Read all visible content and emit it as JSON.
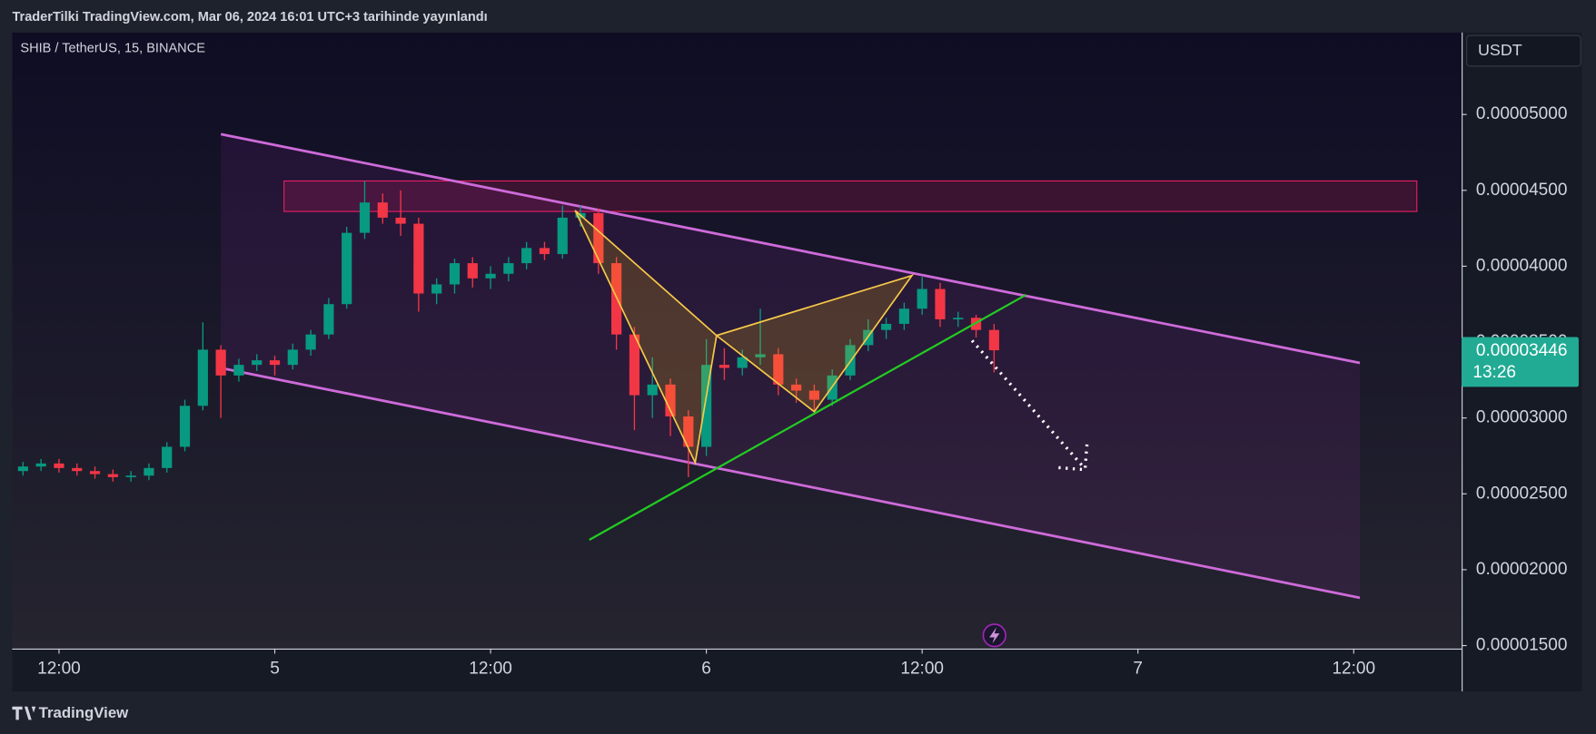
{
  "header": "TraderTilki TradingView.com, Mar 06, 2024 16:01 UTC+3 tarihinde yayınlandı",
  "chart_data": {
    "type": "candlestick",
    "title": "SHIB / TetherUS, 15, BINANCE",
    "currency": "USDT",
    "x": [
      -14,
      -13,
      -12,
      -11,
      -10,
      -9,
      -8,
      -7,
      -6,
      -5,
      -4,
      -3,
      -2,
      -1,
      0,
      1,
      2,
      3,
      4,
      5,
      6,
      7,
      8,
      9,
      10,
      11,
      12,
      13,
      14,
      15,
      16,
      17,
      18,
      19,
      20,
      21,
      22,
      23,
      24,
      25,
      26,
      27,
      28,
      29,
      30,
      31,
      32,
      33,
      34,
      35,
      36,
      37,
      38,
      39,
      40
    ],
    "open": [
      2.65e-05,
      2.68e-05,
      2.7e-05,
      2.67e-05,
      2.65e-05,
      2.63e-05,
      2.61e-05,
      2.62e-05,
      2.67e-05,
      2.81e-05,
      3.08e-05,
      3.45e-05,
      3.28e-05,
      3.35e-05,
      3.38e-05,
      3.35e-05,
      3.45e-05,
      3.55e-05,
      3.75e-05,
      4.22e-05,
      4.42e-05,
      4.32e-05,
      4.28e-05,
      3.82e-05,
      3.88e-05,
      4.02e-05,
      3.92e-05,
      3.95e-05,
      4.02e-05,
      4.12e-05,
      4.08e-05,
      4.32e-05,
      4.35e-05,
      4.02e-05,
      3.55e-05,
      3.15e-05,
      3.22e-05,
      3.01e-05,
      2.81e-05,
      3.35e-05,
      3.33e-05,
      3.4e-05,
      3.42e-05,
      3.22e-05,
      3.18e-05,
      3.12e-05,
      3.28e-05,
      3.48e-05,
      3.58e-05,
      3.62e-05,
      3.72e-05,
      3.85e-05,
      3.65e-05,
      3.66e-05,
      3.58e-05
    ],
    "high": [
      2.71e-05,
      2.73e-05,
      2.73e-05,
      2.7e-05,
      2.68e-05,
      2.66e-05,
      2.65e-05,
      2.7e-05,
      2.84e-05,
      3.12e-05,
      3.63e-05,
      3.48e-05,
      3.39e-05,
      3.42e-05,
      3.41e-05,
      3.49e-05,
      3.58e-05,
      3.79e-05,
      4.26e-05,
      4.56e-05,
      4.48e-05,
      4.5e-05,
      4.32e-05,
      3.92e-05,
      4.05e-05,
      4.06e-05,
      4e-05,
      4.06e-05,
      4.16e-05,
      4.16e-05,
      4.4e-05,
      4.4e-05,
      4.38e-05,
      4.06e-05,
      3.6e-05,
      3.4e-05,
      3.26e-05,
      3.05e-05,
      3.52e-05,
      3.46e-05,
      3.45e-05,
      3.72e-05,
      3.46e-05,
      3.26e-05,
      3.22e-05,
      3.32e-05,
      3.52e-05,
      3.65e-05,
      3.66e-05,
      3.76e-05,
      3.93e-05,
      3.89e-05,
      3.7e-05,
      3.68e-05,
      3.62e-05
    ],
    "low": [
      2.62e-05,
      2.65e-05,
      2.64e-05,
      2.62e-05,
      2.6e-05,
      2.58e-05,
      2.58e-05,
      2.59e-05,
      2.64e-05,
      2.78e-05,
      3.05e-05,
      3e-05,
      3.24e-05,
      3.31e-05,
      3.28e-05,
      3.32e-05,
      3.41e-05,
      3.52e-05,
      3.72e-05,
      4.18e-05,
      4.28e-05,
      4.2e-05,
      3.7e-05,
      3.75e-05,
      3.82e-05,
      3.86e-05,
      3.85e-05,
      3.9e-05,
      3.98e-05,
      4.04e-05,
      4.05e-05,
      4.26e-05,
      3.95e-05,
      3.45e-05,
      2.92e-05,
      3e-05,
      2.88e-05,
      2.61e-05,
      2.75e-05,
      3.25e-05,
      3.28e-05,
      3.35e-05,
      3.15e-05,
      3.1e-05,
      3.05e-05,
      3.08e-05,
      3.25e-05,
      3.44e-05,
      3.52e-05,
      3.58e-05,
      3.68e-05,
      3.6e-05,
      3.6e-05,
      3.53e-05,
      3.3e-05
    ],
    "close": [
      2.68e-05,
      2.7e-05,
      2.67e-05,
      2.65e-05,
      2.63e-05,
      2.61e-05,
      2.62e-05,
      2.67e-05,
      2.81e-05,
      3.08e-05,
      3.45e-05,
      3.28e-05,
      3.35e-05,
      3.38e-05,
      3.35e-05,
      3.45e-05,
      3.55e-05,
      3.75e-05,
      4.22e-05,
      4.42e-05,
      4.32e-05,
      4.28e-05,
      3.82e-05,
      3.88e-05,
      4.02e-05,
      3.92e-05,
      3.95e-05,
      4.02e-05,
      4.12e-05,
      4.08e-05,
      4.32e-05,
      4.35e-05,
      4.02e-05,
      3.55e-05,
      3.15e-05,
      3.22e-05,
      3.01e-05,
      2.81e-05,
      3.35e-05,
      3.33e-05,
      3.4e-05,
      3.42e-05,
      3.22e-05,
      3.18e-05,
      3.12e-05,
      3.28e-05,
      3.48e-05,
      3.58e-05,
      3.62e-05,
      3.72e-05,
      3.85e-05,
      3.65e-05,
      3.66e-05,
      3.58e-05,
      3.446e-05
    ],
    "up_color": "#089981",
    "down_color": "#f23645",
    "last_price_color": "#22ab94",
    "countdown": "13:26",
    "grid": false,
    "xlim": [
      -14.6,
      66
    ],
    "ylim": [
      1.48e-05,
      5.54e-05
    ],
    "xticks": [
      {
        "value": -12,
        "label": "12:00"
      },
      {
        "value": 0,
        "label": "5"
      },
      {
        "value": 12,
        "label": "12:00"
      },
      {
        "value": 24,
        "label": "6"
      },
      {
        "value": 36,
        "label": "12:00"
      },
      {
        "value": 48,
        "label": "7"
      },
      {
        "value": 60,
        "label": "12:00"
      }
    ],
    "yticks": [
      {
        "value": 1.5e-05,
        "label": "0.00001500"
      },
      {
        "value": 2e-05,
        "label": "0.00002000"
      },
      {
        "value": 2.5e-05,
        "label": "0.00002500"
      },
      {
        "value": 3e-05,
        "label": "0.00003000"
      },
      {
        "value": 3.5e-05,
        "label": "0.00003500"
      },
      {
        "value": 4e-05,
        "label": "0.00004000"
      },
      {
        "value": 4.5e-05,
        "label": "0.00004500"
      },
      {
        "value": 5e-05,
        "label": "0.00005000"
      }
    ]
  },
  "footer": "TradingView"
}
